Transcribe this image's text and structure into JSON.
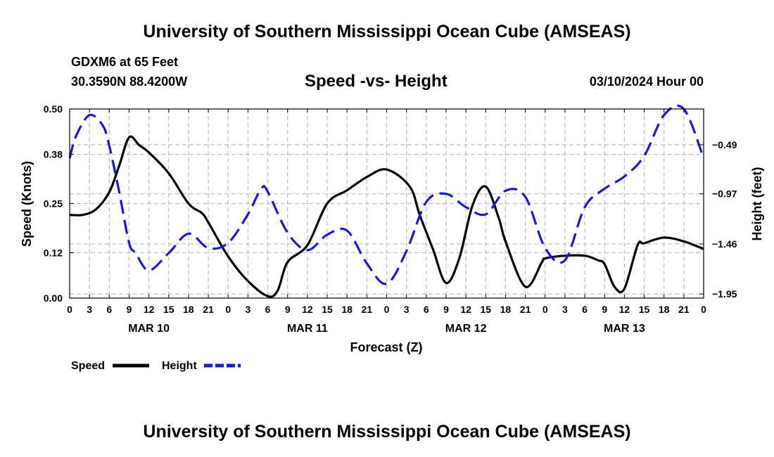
{
  "header": {
    "title": "University of Southern Mississippi Ocean Cube (AMSEAS)",
    "station": "GDXM6 at 65 Feet",
    "coords": "30.3590N  88.4200W",
    "date": "03/10/2024 Hour 00",
    "footer_title": "University of Southern Mississippi Ocean Cube (AMSEAS)"
  },
  "colors": {
    "speed": "#000000",
    "height": "#1a1acc",
    "grid": "#bbbbbb"
  },
  "chart_data": {
    "type": "line",
    "title": "Speed -vs- Height",
    "xlabel": "Forecast (Z)",
    "ylabel": "Speed (Knots)",
    "ylabel_right": "Height (feet)",
    "xlim": [
      0,
      96
    ],
    "ylim": [
      0,
      0.5
    ],
    "ylim_right": [
      -1.99,
      -0.14
    ],
    "x_tick_values": [
      0,
      3,
      6,
      9,
      12,
      15,
      18,
      21,
      24,
      27,
      30,
      33,
      36,
      39,
      42,
      45,
      48,
      51,
      54,
      57,
      60,
      63,
      66,
      69,
      72,
      75,
      78,
      81,
      84,
      87,
      90,
      93,
      96
    ],
    "x_tick_labels": [
      "0",
      "3",
      "6",
      "9",
      "12",
      "15",
      "18",
      "21",
      "0",
      "3",
      "6",
      "9",
      "12",
      "15",
      "18",
      "21",
      "0",
      "3",
      "6",
      "9",
      "12",
      "15",
      "18",
      "21",
      "0",
      "3",
      "6",
      "9",
      "12",
      "15",
      "18",
      "21",
      "0"
    ],
    "y_ticks": [
      0.0,
      0.12,
      0.25,
      0.38,
      0.5
    ],
    "y_tick_labels": [
      "0.00",
      "0.12",
      "0.25",
      "0.38",
      "0.50"
    ],
    "y_right_ticks": [
      -0.49,
      -0.97,
      -1.46,
      -1.95
    ],
    "y_right_tick_labels": [
      "−0.49",
      "−0.97",
      "−1.46",
      "−1.95"
    ],
    "day_labels": [
      {
        "x": 12,
        "label": "MAR 10"
      },
      {
        "x": 36,
        "label": "MAR 11"
      },
      {
        "x": 60,
        "label": "MAR 12"
      },
      {
        "x": 84,
        "label": "MAR 13"
      }
    ],
    "legend": [
      {
        "name": "Speed",
        "style": "solid"
      },
      {
        "name": "Height",
        "style": "dashed"
      }
    ],
    "series": [
      {
        "name": "Speed",
        "axis": "left",
        "style": "solid",
        "x": [
          0,
          2,
          4,
          6,
          7.5,
          9,
          10.5,
          12,
          15,
          18,
          20,
          21,
          24,
          27,
          30,
          31.5,
          33,
          36,
          39,
          42,
          45,
          48,
          51.5,
          53,
          55,
          57,
          59,
          61,
          63,
          65,
          66,
          69,
          71.5,
          72,
          75,
          78,
          80,
          81,
          82.5,
          84,
          86,
          87,
          90,
          93,
          96
        ],
        "y": [
          0.22,
          0.22,
          0.235,
          0.28,
          0.35,
          0.425,
          0.405,
          0.385,
          0.33,
          0.25,
          0.225,
          0.2,
          0.11,
          0.045,
          0.005,
          0.02,
          0.095,
          0.14,
          0.25,
          0.285,
          0.32,
          0.34,
          0.295,
          0.22,
          0.13,
          0.04,
          0.105,
          0.245,
          0.295,
          0.21,
          0.15,
          0.03,
          0.095,
          0.105,
          0.112,
          0.112,
          0.1,
          0.09,
          0.03,
          0.025,
          0.14,
          0.145,
          0.16,
          0.15,
          0.13
        ]
      },
      {
        "name": "Height",
        "axis": "right",
        "style": "dashed",
        "x": [
          0,
          1,
          3,
          5,
          6,
          7.5,
          9,
          10,
          12,
          15,
          18,
          21,
          24,
          27,
          29,
          30,
          33,
          36,
          39,
          42,
          45,
          48,
          51,
          54,
          57,
          60,
          63,
          66,
          69,
          72,
          75,
          78,
          81,
          84,
          87,
          90,
          93,
          96
        ],
        "y": [
          -0.62,
          -0.4,
          -0.2,
          -0.3,
          -0.5,
          -0.95,
          -1.45,
          -1.55,
          -1.72,
          -1.55,
          -1.36,
          -1.5,
          -1.45,
          -1.17,
          -0.92,
          -0.95,
          -1.35,
          -1.52,
          -1.37,
          -1.33,
          -1.65,
          -1.85,
          -1.53,
          -1.05,
          -0.97,
          -1.1,
          -1.17,
          -0.94,
          -1.0,
          -1.5,
          -1.62,
          -1.1,
          -0.92,
          -0.8,
          -0.6,
          -0.2,
          -0.14,
          -0.62
        ]
      }
    ]
  }
}
